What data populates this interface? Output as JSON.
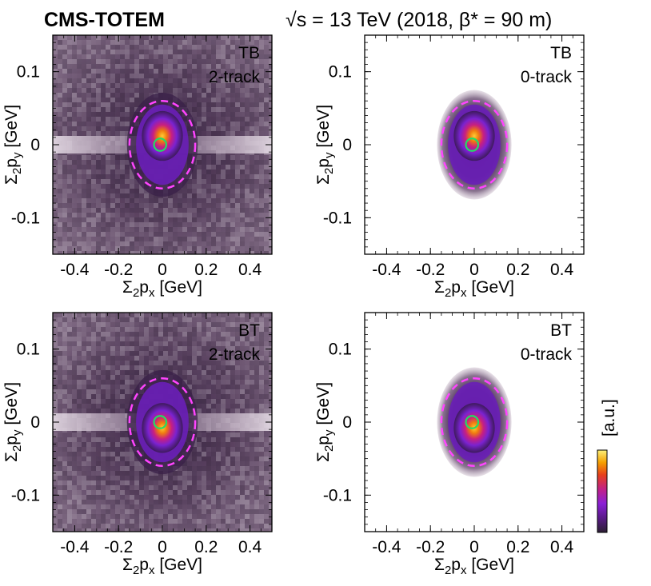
{
  "header": {
    "experiment": "CMS-TOTEM",
    "energy": "√s = 13 TeV (2018, β* = 90 m)"
  },
  "colorbar": {
    "label": "[a.u.]",
    "colors": [
      "#2b1f33",
      "#5a1a8a",
      "#8a1fd6",
      "#c0208a",
      "#e8401a",
      "#f5a000",
      "#fff27a"
    ]
  },
  "styles": {
    "ellipse_color": "#ff44ff",
    "circle_color": "#22dd66",
    "halo_color": "#5a3f62",
    "bg_2track": "#6e5572"
  },
  "chart_data": [
    {
      "type": "heatmap",
      "title": "",
      "tag_top": "TB",
      "tag_bottom": "2-track",
      "xlabel": "Σ2px [GeV]",
      "ylabel": "Σ2py [GeV]",
      "xlim": [
        -0.5,
        0.5
      ],
      "ylim": [
        -0.15,
        0.15
      ],
      "xticks": [
        -0.4,
        -0.2,
        0,
        0.2,
        0.4
      ],
      "yticks": [
        -0.1,
        0,
        0.1
      ],
      "background": "full",
      "core_center": [
        0,
        0
      ],
      "core_offset_y": 0.012,
      "ellipse": {
        "cx": 0,
        "cy": 0,
        "rx": 0.15,
        "ry": 0.06
      },
      "circle": {
        "cx": -0.01,
        "cy": 0,
        "r": 0.01
      }
    },
    {
      "type": "heatmap",
      "title": "",
      "tag_top": "TB",
      "tag_bottom": "0-track",
      "xlabel": "Σ2px [GeV]",
      "ylabel": "Σ2py [GeV]",
      "xlim": [
        -0.5,
        0.5
      ],
      "ylim": [
        -0.15,
        0.15
      ],
      "xticks": [
        -0.4,
        -0.2,
        0,
        0.2,
        0.4
      ],
      "yticks": [
        -0.1,
        0,
        0.1
      ],
      "background": "none",
      "core_center": [
        0,
        0
      ],
      "core_offset_y": 0.012,
      "ellipse": {
        "cx": 0,
        "cy": 0,
        "rx": 0.15,
        "ry": 0.06
      },
      "circle": {
        "cx": -0.01,
        "cy": 0,
        "r": 0.01
      }
    },
    {
      "type": "heatmap",
      "title": "",
      "tag_top": "BT",
      "tag_bottom": "2-track",
      "xlabel": "Σ2px [GeV]",
      "ylabel": "Σ2py [GeV]",
      "xlim": [
        -0.5,
        0.5
      ],
      "ylim": [
        -0.15,
        0.15
      ],
      "xticks": [
        -0.4,
        -0.2,
        0,
        0.2,
        0.4
      ],
      "yticks": [
        -0.1,
        0,
        0.1
      ],
      "background": "full",
      "core_center": [
        0,
        0
      ],
      "core_offset_y": -0.008,
      "ellipse": {
        "cx": 0,
        "cy": 0,
        "rx": 0.15,
        "ry": 0.06
      },
      "circle": {
        "cx": -0.01,
        "cy": 0,
        "r": 0.01
      }
    },
    {
      "type": "heatmap",
      "title": "",
      "tag_top": "BT",
      "tag_bottom": "0-track",
      "xlabel": "Σ2px [GeV]",
      "ylabel": "Σ2py [GeV]",
      "xlim": [
        -0.5,
        0.5
      ],
      "ylim": [
        -0.15,
        0.15
      ],
      "xticks": [
        -0.4,
        -0.2,
        0,
        0.2,
        0.4
      ],
      "yticks": [
        -0.1,
        0,
        0.1
      ],
      "background": "none",
      "core_center": [
        0,
        0
      ],
      "core_offset_y": -0.008,
      "ellipse": {
        "cx": 0,
        "cy": 0,
        "rx": 0.15,
        "ry": 0.06
      },
      "circle": {
        "cx": -0.01,
        "cy": 0,
        "r": 0.01
      }
    }
  ]
}
